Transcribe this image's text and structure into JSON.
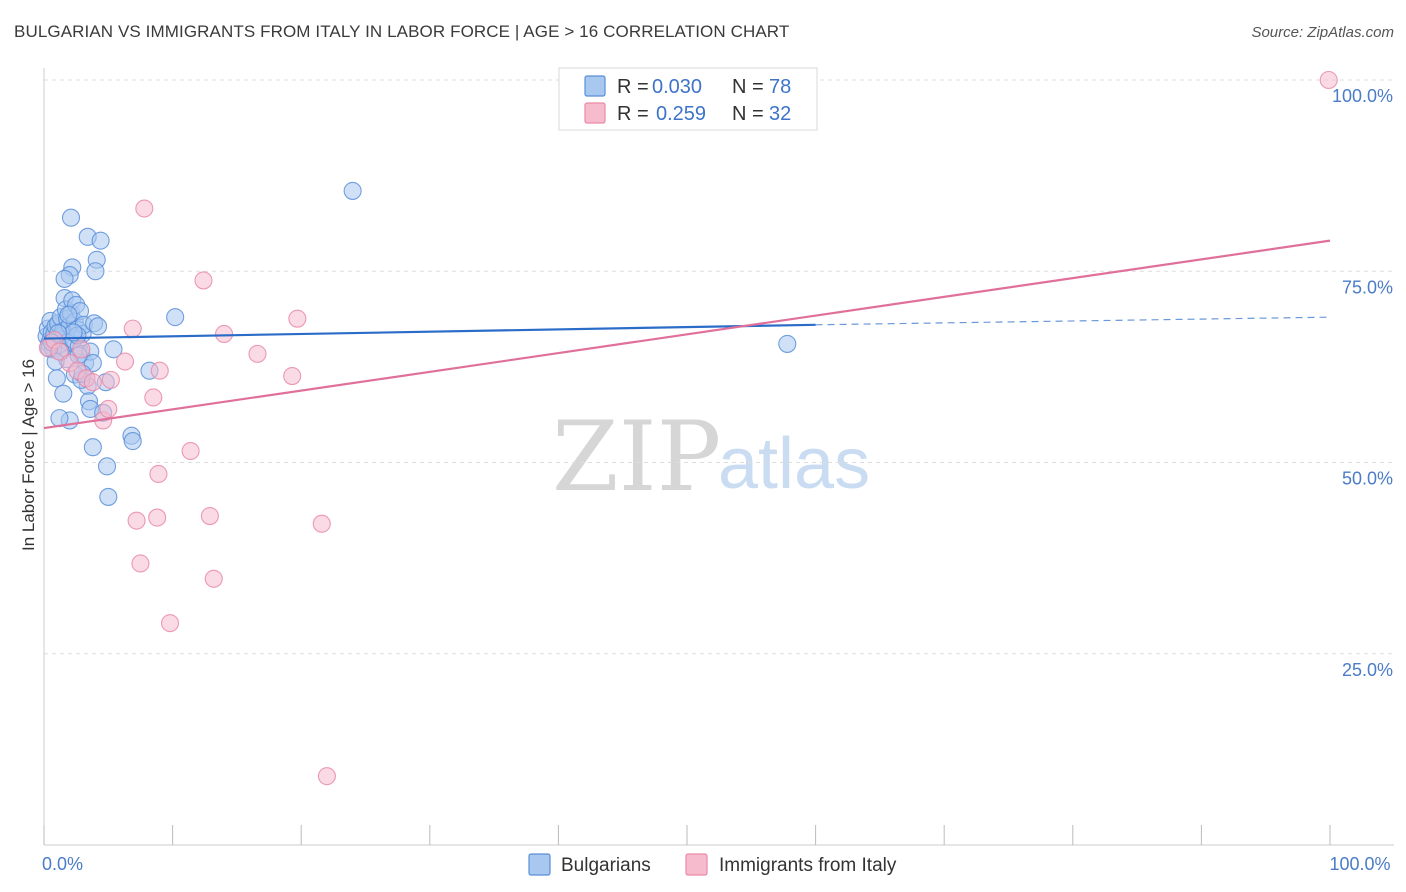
{
  "header": {
    "title": "BULGARIAN VS IMMIGRANTS FROM ITALY IN LABOR FORCE | AGE > 16 CORRELATION CHART",
    "source": "Source: ZipAtlas.com"
  },
  "watermark": {
    "zip": "ZIP",
    "atlas": "atlas"
  },
  "colors": {
    "blue_fill": "#a9c8f0",
    "blue_stroke": "#5a8fd8",
    "blue_line": "#2b6cc9",
    "pink_fill": "#f6bccd",
    "pink_stroke": "#e98aa8",
    "pink_line": "#e0709a",
    "grid": "#dddddd",
    "axis_tick_text": "#4a7cc7"
  },
  "chart_data": {
    "type": "scatter",
    "title": "BULGARIAN VS IMMIGRANTS FROM ITALY IN LABOR FORCE | AGE > 16 CORRELATION CHART",
    "xlabel": "",
    "ylabel": "In Labor Force | Age > 16",
    "xlim": [
      0,
      100
    ],
    "ylim": [
      0,
      100
    ],
    "x_tick_labels": [
      {
        "value": 0,
        "label": "0.0%"
      },
      {
        "value": 100,
        "label": "100.0%"
      }
    ],
    "y_tick_labels": [
      {
        "value": 25,
        "label": "25.0%"
      },
      {
        "value": 50,
        "label": "50.0%"
      },
      {
        "value": 75,
        "label": "75.0%"
      },
      {
        "value": 100,
        "label": "100.0%"
      }
    ],
    "legend": [
      {
        "series": "Bulgarians",
        "r_label": "R =",
        "r_value": "0.030",
        "n_label": "N =",
        "n_value": "78"
      },
      {
        "series": "Immigrants from Italy",
        "r_label": "R =",
        "r_value": "0.259",
        "n_label": "N =",
        "n_value": "32"
      }
    ],
    "series": [
      {
        "name": "Bulgarians",
        "color": "#5a8fd8",
        "trend": {
          "x0": 0,
          "y0": 66.2,
          "x1": 60,
          "y1": 68.0,
          "dash_to_x": 100,
          "dash_to_y": 69.0
        },
        "points": [
          [
            0.2,
            66.5
          ],
          [
            0.3,
            67.5
          ],
          [
            0.4,
            65.5
          ],
          [
            0.5,
            68.5
          ],
          [
            0.5,
            66.0
          ],
          [
            0.6,
            67.0
          ],
          [
            0.7,
            65.0
          ],
          [
            0.8,
            66.8
          ],
          [
            0.9,
            67.8
          ],
          [
            1.0,
            66.2
          ],
          [
            1.1,
            68.2
          ],
          [
            1.2,
            65.4
          ],
          [
            1.3,
            69.0
          ],
          [
            1.4,
            66.6
          ],
          [
            1.5,
            67.2
          ],
          [
            1.6,
            71.5
          ],
          [
            1.7,
            70.0
          ],
          [
            1.8,
            68.8
          ],
          [
            1.9,
            65.8
          ],
          [
            2.0,
            67.9
          ],
          [
            2.1,
            69.5
          ],
          [
            2.2,
            71.2
          ],
          [
            2.3,
            66.0
          ],
          [
            2.4,
            68.4
          ],
          [
            2.5,
            70.6
          ],
          [
            2.6,
            67.4
          ],
          [
            2.7,
            65.2
          ],
          [
            2.8,
            69.8
          ],
          [
            2.9,
            64.2
          ],
          [
            3.0,
            66.8
          ],
          [
            3.1,
            68.0
          ],
          [
            3.2,
            63.0
          ],
          [
            3.3,
            61.0
          ],
          [
            3.4,
            60.0
          ],
          [
            3.5,
            58.0
          ],
          [
            3.6,
            57.0
          ],
          [
            1.0,
            61.0
          ],
          [
            1.5,
            59.0
          ],
          [
            2.0,
            55.5
          ],
          [
            1.8,
            63.5
          ],
          [
            2.2,
            75.5
          ],
          [
            2.0,
            74.5
          ],
          [
            1.6,
            74.0
          ],
          [
            2.1,
            82.0
          ],
          [
            3.4,
            79.5
          ],
          [
            4.1,
            76.5
          ],
          [
            4.4,
            79.0
          ],
          [
            4.0,
            75.0
          ],
          [
            3.9,
            68.2
          ],
          [
            4.2,
            67.8
          ],
          [
            3.6,
            64.5
          ],
          [
            3.8,
            63.0
          ],
          [
            4.8,
            60.5
          ],
          [
            5.4,
            64.8
          ],
          [
            4.9,
            49.5
          ],
          [
            5.0,
            45.5
          ],
          [
            3.8,
            52.0
          ],
          [
            4.6,
            56.5
          ],
          [
            6.8,
            53.5
          ],
          [
            6.9,
            52.8
          ],
          [
            8.2,
            62.0
          ],
          [
            10.2,
            69.0
          ],
          [
            24.0,
            85.5
          ],
          [
            57.8,
            65.5
          ],
          [
            0.7,
            64.8
          ],
          [
            1.3,
            64.5
          ],
          [
            2.6,
            66.6
          ],
          [
            2.4,
            61.5
          ],
          [
            1.2,
            55.8
          ],
          [
            2.9,
            60.8
          ],
          [
            3.0,
            61.6
          ],
          [
            0.4,
            64.9
          ],
          [
            1.9,
            69.3
          ],
          [
            2.3,
            67.0
          ],
          [
            0.9,
            63.2
          ],
          [
            2.7,
            64.0
          ],
          [
            1.1,
            66.9
          ],
          [
            0.6,
            65.7
          ]
        ]
      },
      {
        "name": "Immigrants from Italy",
        "color": "#e98aa8",
        "trend": {
          "x0": 0,
          "y0": 54.5,
          "x1": 100,
          "y1": 79.0
        },
        "points": [
          [
            0.3,
            65.0
          ],
          [
            0.8,
            66.0
          ],
          [
            1.2,
            64.5
          ],
          [
            2.0,
            63.0
          ],
          [
            2.6,
            62.0
          ],
          [
            2.9,
            64.8
          ],
          [
            3.3,
            61.0
          ],
          [
            3.8,
            60.5
          ],
          [
            4.6,
            55.5
          ],
          [
            5.0,
            57.0
          ],
          [
            5.2,
            60.8
          ],
          [
            6.3,
            63.2
          ],
          [
            6.9,
            67.5
          ],
          [
            7.8,
            83.2
          ],
          [
            8.5,
            58.5
          ],
          [
            9.0,
            62.0
          ],
          [
            8.9,
            48.5
          ],
          [
            8.8,
            42.8
          ],
          [
            7.2,
            42.4
          ],
          [
            7.5,
            36.8
          ],
          [
            11.4,
            51.5
          ],
          [
            12.4,
            73.8
          ],
          [
            12.9,
            43.0
          ],
          [
            13.2,
            34.8
          ],
          [
            14.0,
            66.8
          ],
          [
            16.6,
            64.2
          ],
          [
            19.3,
            61.3
          ],
          [
            19.7,
            68.8
          ],
          [
            21.6,
            42.0
          ],
          [
            22.0,
            9.0
          ],
          [
            9.8,
            29.0
          ],
          [
            99.9,
            100.0
          ]
        ]
      }
    ]
  }
}
